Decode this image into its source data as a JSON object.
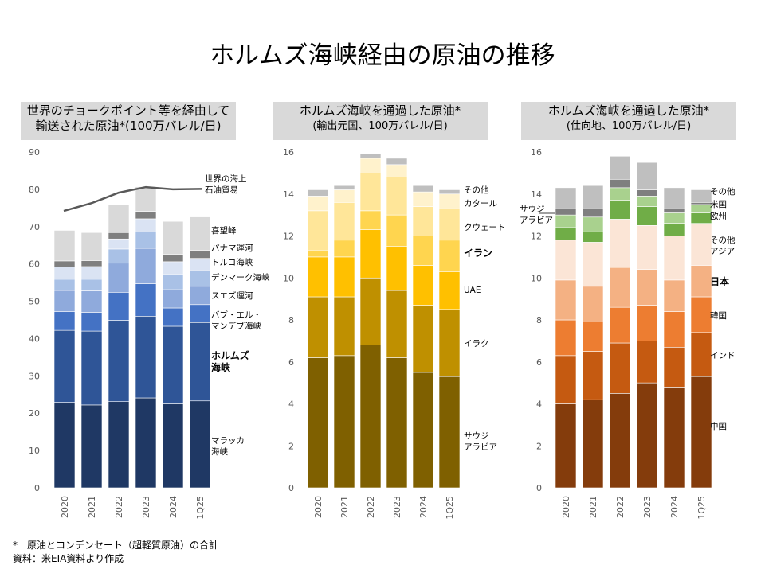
{
  "title": "ホルムズ海峡経由の原油の推移",
  "notes": [
    "*　原油とコンデンセート（超軽質原油）の合計",
    "資料：米EIA資料より作成"
  ],
  "chart_data": [
    {
      "type": "bar",
      "stacked": true,
      "title_lines": [
        "世界のチョークポイント等を経由して",
        "輸送された原油*(100万バレル/日)"
      ],
      "categories": [
        "2020",
        "2021",
        "2022",
        "2023",
        "2024",
        "1Q25"
      ],
      "ylim": [
        0,
        90
      ],
      "yticks": [
        0,
        10,
        20,
        30,
        40,
        50,
        60,
        70,
        80,
        90
      ],
      "grid": false,
      "series": [
        {
          "name": "マラッカ海峡",
          "label_lines": [
            "マラッカ",
            "海峡"
          ],
          "color": "#1f3864",
          "values": [
            22.9,
            22.2,
            23.1,
            24.1,
            22.5,
            23.3
          ]
        },
        {
          "name": "ホルムズ海峡",
          "label_lines": [
            "ホルムズ",
            "海峡"
          ],
          "bold": true,
          "color": "#2f5597",
          "values": [
            19.3,
            19.8,
            21.8,
            21.9,
            20.8,
            21.0
          ]
        },
        {
          "name": "バブ・エル・マンデブ海峡",
          "label_lines": [
            "バブ・エル・",
            "マンデブ海峡"
          ],
          "color": "#4472c4",
          "values": [
            5.0,
            5.0,
            7.5,
            8.7,
            4.9,
            4.8
          ]
        },
        {
          "name": "スエズ運河",
          "label_lines": [
            "スエズ運河"
          ],
          "color": "#8faadc",
          "values": [
            5.7,
            5.8,
            7.8,
            9.5,
            4.9,
            4.9
          ]
        },
        {
          "name": "デンマーク海峡",
          "label_lines": [
            "デンマーク海峡"
          ],
          "color": "#a9c1e6",
          "values": [
            3.0,
            3.1,
            3.8,
            4.4,
            4.2,
            4.2
          ]
        },
        {
          "name": "トルコ海峡",
          "label_lines": [
            "トルコ海峡"
          ],
          "color": "#dae3f3",
          "values": [
            3.3,
            3.4,
            2.7,
            3.5,
            3.3,
            3.3
          ]
        },
        {
          "name": "パナマ運河",
          "label_lines": [
            "パナマ運河"
          ],
          "color": "#7f7f7f",
          "values": [
            1.6,
            1.6,
            1.7,
            2.0,
            2.0,
            2.1
          ]
        },
        {
          "name": "喜望峰",
          "label_lines": [
            "喜望峰"
          ],
          "color": "#d9d9d9",
          "values": [
            8.2,
            7.5,
            7.5,
            6.6,
            8.8,
            9.0
          ]
        }
      ],
      "line_series": {
        "name": "世界の海上石油貿易",
        "label_lines": [
          "世界の海上",
          "石油貿易"
        ],
        "color": "#595959",
        "values": [
          74.2,
          76.3,
          79.1,
          80.6,
          80.0,
          80.1
        ]
      }
    },
    {
      "type": "bar",
      "stacked": true,
      "title_lines": [
        "ホルムズ海峡を通過した原油*",
        "(輸出元国、100万バレル/日)"
      ],
      "categories": [
        "2020",
        "2021",
        "2022",
        "2023",
        "2024",
        "1Q25"
      ],
      "ylim": [
        0,
        16
      ],
      "yticks": [
        0,
        2,
        4,
        6,
        8,
        10,
        12,
        14,
        16
      ],
      "grid": false,
      "series": [
        {
          "name": "サウジアラビア",
          "label_lines": [
            "サウジ",
            "アラビア"
          ],
          "color": "#7f6000",
          "values": [
            6.2,
            6.3,
            6.8,
            6.2,
            5.5,
            5.3
          ]
        },
        {
          "name": "イラク",
          "label_lines": [
            "イラク"
          ],
          "color": "#bf9000",
          "values": [
            2.9,
            2.8,
            3.2,
            3.2,
            3.2,
            3.2
          ]
        },
        {
          "name": "UAE",
          "label_lines": [
            "UAE"
          ],
          "color": "#ffc000",
          "values": [
            1.9,
            1.9,
            2.3,
            2.1,
            1.9,
            1.8
          ]
        },
        {
          "name": "イラン",
          "label_lines": [
            "イラン"
          ],
          "bold": true,
          "color": "#ffd54f",
          "values": [
            0.3,
            0.8,
            0.9,
            1.5,
            1.4,
            1.5
          ]
        },
        {
          "name": "クウェート",
          "label_lines": [
            "クウェート"
          ],
          "color": "#ffe699",
          "values": [
            1.9,
            1.8,
            1.8,
            1.8,
            1.4,
            1.5
          ]
        },
        {
          "name": "カタール",
          "label_lines": [
            "カタール"
          ],
          "color": "#fff2cc",
          "values": [
            0.7,
            0.6,
            0.7,
            0.6,
            0.7,
            0.7
          ]
        },
        {
          "name": "その他",
          "label_lines": [
            "その他"
          ],
          "color": "#bfbfbf",
          "values": [
            0.3,
            0.2,
            0.2,
            0.3,
            0.3,
            0.2
          ]
        }
      ]
    },
    {
      "type": "bar",
      "stacked": true,
      "title_lines": [
        "ホルムズ海峡を通過した原油*",
        "(仕向地、100万バレル/日)"
      ],
      "categories": [
        "2020",
        "2021",
        "2022",
        "2023",
        "2024",
        "1Q25"
      ],
      "ylim": [
        0,
        16
      ],
      "yticks": [
        0,
        2,
        4,
        6,
        8,
        10,
        12,
        14,
        16
      ],
      "grid": false,
      "series": [
        {
          "name": "中国",
          "label_lines": [
            "中国"
          ],
          "color": "#843c0c",
          "values": [
            4.0,
            4.2,
            4.5,
            5.0,
            4.8,
            5.3
          ]
        },
        {
          "name": "インド",
          "label_lines": [
            "インド"
          ],
          "color": "#c55a11",
          "values": [
            2.3,
            2.3,
            2.4,
            2.0,
            1.9,
            2.1
          ]
        },
        {
          "name": "韓国",
          "label_lines": [
            "韓国"
          ],
          "color": "#ed7d31",
          "values": [
            1.7,
            1.4,
            1.7,
            1.7,
            1.7,
            1.7
          ]
        },
        {
          "name": "日本",
          "label_lines": [
            "日本"
          ],
          "bold": true,
          "color": "#f4b183",
          "values": [
            1.9,
            1.7,
            1.9,
            1.7,
            1.5,
            1.5
          ]
        },
        {
          "name": "その他アジア",
          "label_lines": [
            "その他",
            "アジア"
          ],
          "color": "#fbe5d6",
          "values": [
            1.9,
            2.1,
            2.3,
            2.1,
            2.1,
            2.0
          ]
        },
        {
          "name": "欧州",
          "label_lines": [
            "欧州"
          ],
          "color": "#70ad47",
          "values": [
            0.6,
            0.5,
            0.9,
            0.9,
            0.6,
            0.5
          ]
        },
        {
          "name": "米国",
          "label_lines": [
            "米国"
          ],
          "color": "#a9d18e",
          "values": [
            0.6,
            0.7,
            0.6,
            0.5,
            0.5,
            0.4
          ]
        },
        {
          "name": "サウジアラビア",
          "label_lines": [
            "サウジ",
            "アラビア"
          ],
          "color": "#7f7f7f",
          "values": [
            0.3,
            0.4,
            0.4,
            0.3,
            0.2,
            0.1
          ]
        },
        {
          "name": "その他",
          "label_lines": [
            "その他"
          ],
          "color": "#bfbfbf",
          "values": [
            1.0,
            1.1,
            1.1,
            1.3,
            1.0,
            0.6
          ]
        }
      ]
    }
  ]
}
